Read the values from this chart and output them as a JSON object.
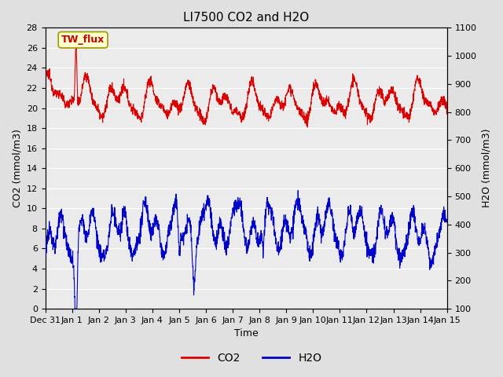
{
  "title": "LI7500 CO2 and H2O",
  "xlabel": "Time",
  "ylabel_left": "CO2 (mmol/m3)",
  "ylabel_right": "H2O (mmol/m3)",
  "xlim_days": [
    0,
    15
  ],
  "ylim_left": [
    0,
    28
  ],
  "ylim_right": [
    100,
    1100
  ],
  "yticks_left": [
    0,
    2,
    4,
    6,
    8,
    10,
    12,
    14,
    16,
    18,
    20,
    22,
    24,
    26,
    28
  ],
  "yticks_right": [
    100,
    200,
    300,
    400,
    500,
    600,
    700,
    800,
    900,
    1000,
    1100
  ],
  "xtick_labels": [
    "Dec 31",
    "Jan 1",
    "Jan 2",
    "Jan 3",
    "Jan 4",
    "Jan 5",
    "Jan 6",
    "Jan 7",
    "Jan 8",
    "Jan 9",
    "Jan 10",
    "Jan 11",
    "Jan 12",
    "Jan 13",
    "Jan 14",
    "Jan 15"
  ],
  "annotation_text": "TW_flux",
  "bg_color": "#e0e0e0",
  "plot_bg_color": "#ebebeb",
  "line_color_co2": "#dd0000",
  "line_color_h2o": "#0000cc",
  "grid_color": "#ffffff",
  "title_fontsize": 11,
  "label_fontsize": 9,
  "tick_fontsize": 8
}
